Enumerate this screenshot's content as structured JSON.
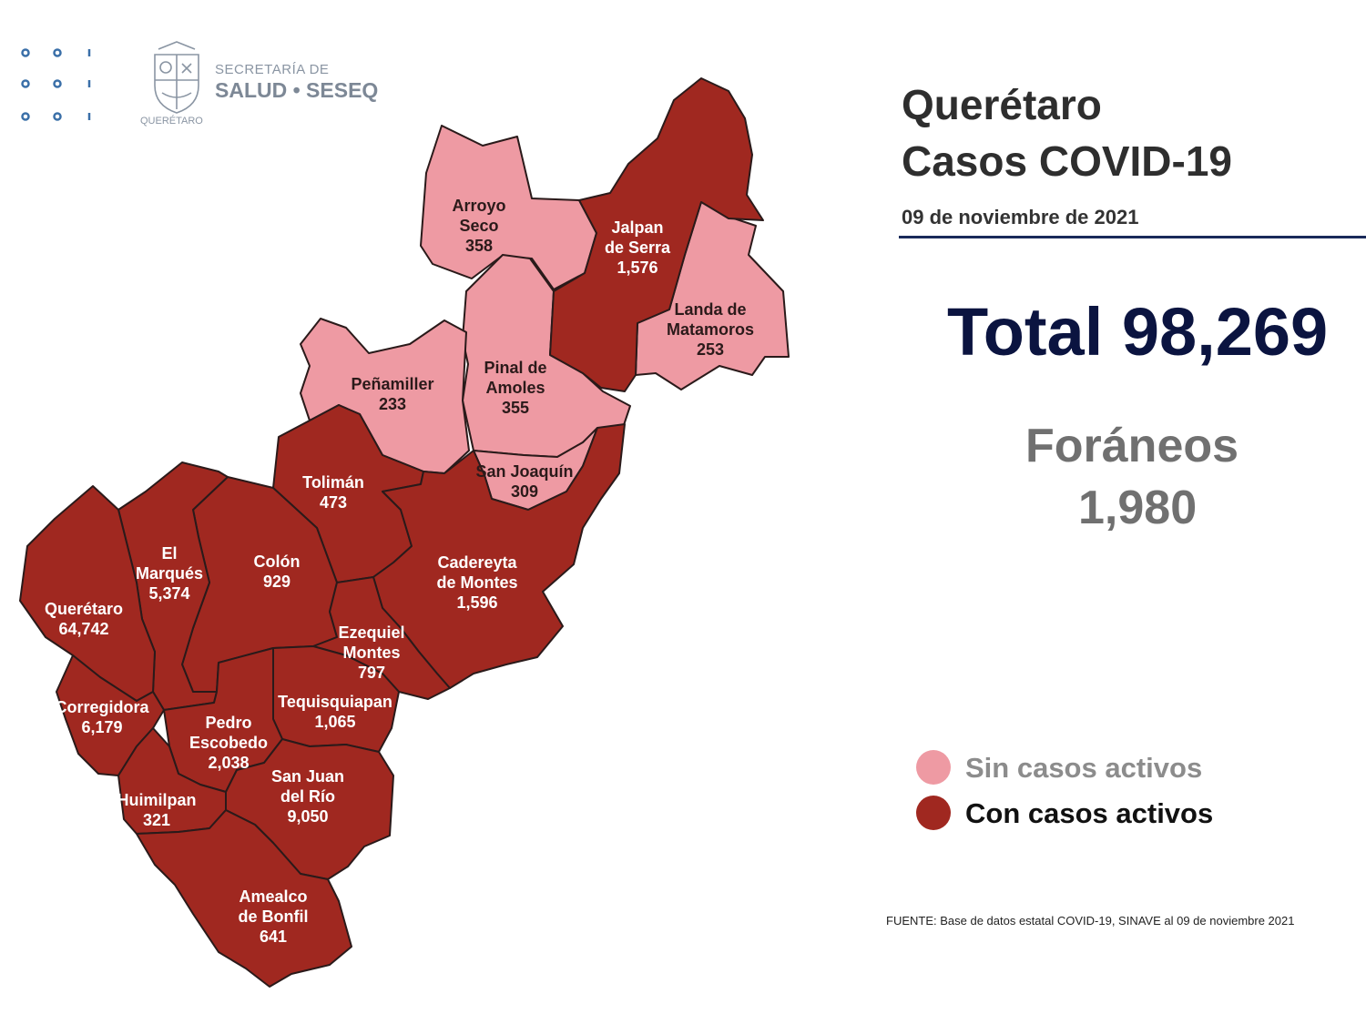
{
  "logo": {
    "line1": "SECRETARÍA DE",
    "line2": "SALUD • SESEQ",
    "under": "QUERÉTARO"
  },
  "header": {
    "title_line1": "Querétaro",
    "title_line2": "Casos COVID-19",
    "date": "09 de noviembre de 2021"
  },
  "summary": {
    "total": "Total 98,269",
    "foraneos_label": "Foráneos",
    "foraneos_value": "1,980"
  },
  "legend": {
    "inactive_label": "Sin casos activos",
    "active_label": "Con casos activos",
    "inactive_color": "#ee9aa3",
    "active_color": "#a02820"
  },
  "source": "FUENTE: Base de datos estatal COVID-19, SINAVE  al 09 de noviembre 2021",
  "municipalities": [
    {
      "id": "arroyo-seco",
      "lines": [
        "Arroyo",
        "Seco",
        "358"
      ],
      "status": "inactive"
    },
    {
      "id": "jalpan",
      "lines": [
        "Jalpan",
        "de Serra",
        "1,576"
      ],
      "status": "active"
    },
    {
      "id": "landa",
      "lines": [
        "Landa de",
        "Matamoros",
        "253"
      ],
      "status": "inactive"
    },
    {
      "id": "pinal",
      "lines": [
        "Pinal de",
        "Amoles",
        "355"
      ],
      "status": "inactive"
    },
    {
      "id": "penamiller",
      "lines": [
        "Peñamiller",
        "233"
      ],
      "status": "inactive"
    },
    {
      "id": "san-joaquin",
      "lines": [
        "San Joaquín",
        "309"
      ],
      "status": "inactive"
    },
    {
      "id": "toliman",
      "lines": [
        "Tolimán",
        "473"
      ],
      "status": "active"
    },
    {
      "id": "cadereyta",
      "lines": [
        "Cadereyta",
        "de Montes",
        "1,596"
      ],
      "status": "active"
    },
    {
      "id": "el-marques",
      "lines": [
        "El",
        "Marqués",
        "5,374"
      ],
      "status": "active"
    },
    {
      "id": "colon",
      "lines": [
        "Colón",
        "929"
      ],
      "status": "active"
    },
    {
      "id": "queretaro",
      "lines": [
        "Querétaro",
        "64,742"
      ],
      "status": "active"
    },
    {
      "id": "ezequiel",
      "lines": [
        "Ezequiel",
        "Montes",
        "797"
      ],
      "status": "active"
    },
    {
      "id": "tequisquiapan",
      "lines": [
        "Tequisquiapan",
        "1,065"
      ],
      "status": "active"
    },
    {
      "id": "corregidora",
      "lines": [
        "Corregidora",
        "6,179"
      ],
      "status": "active"
    },
    {
      "id": "pedro-escobedo",
      "lines": [
        "Pedro",
        "Escobedo",
        "2,038"
      ],
      "status": "active"
    },
    {
      "id": "san-juan",
      "lines": [
        "San Juan",
        "del Río",
        "9,050"
      ],
      "status": "active"
    },
    {
      "id": "huimilpan",
      "lines": [
        "Huimilpan",
        "321"
      ],
      "status": "active"
    },
    {
      "id": "amealco",
      "lines": [
        "Amealco",
        "de Bonfil",
        "641"
      ],
      "status": "active"
    }
  ]
}
